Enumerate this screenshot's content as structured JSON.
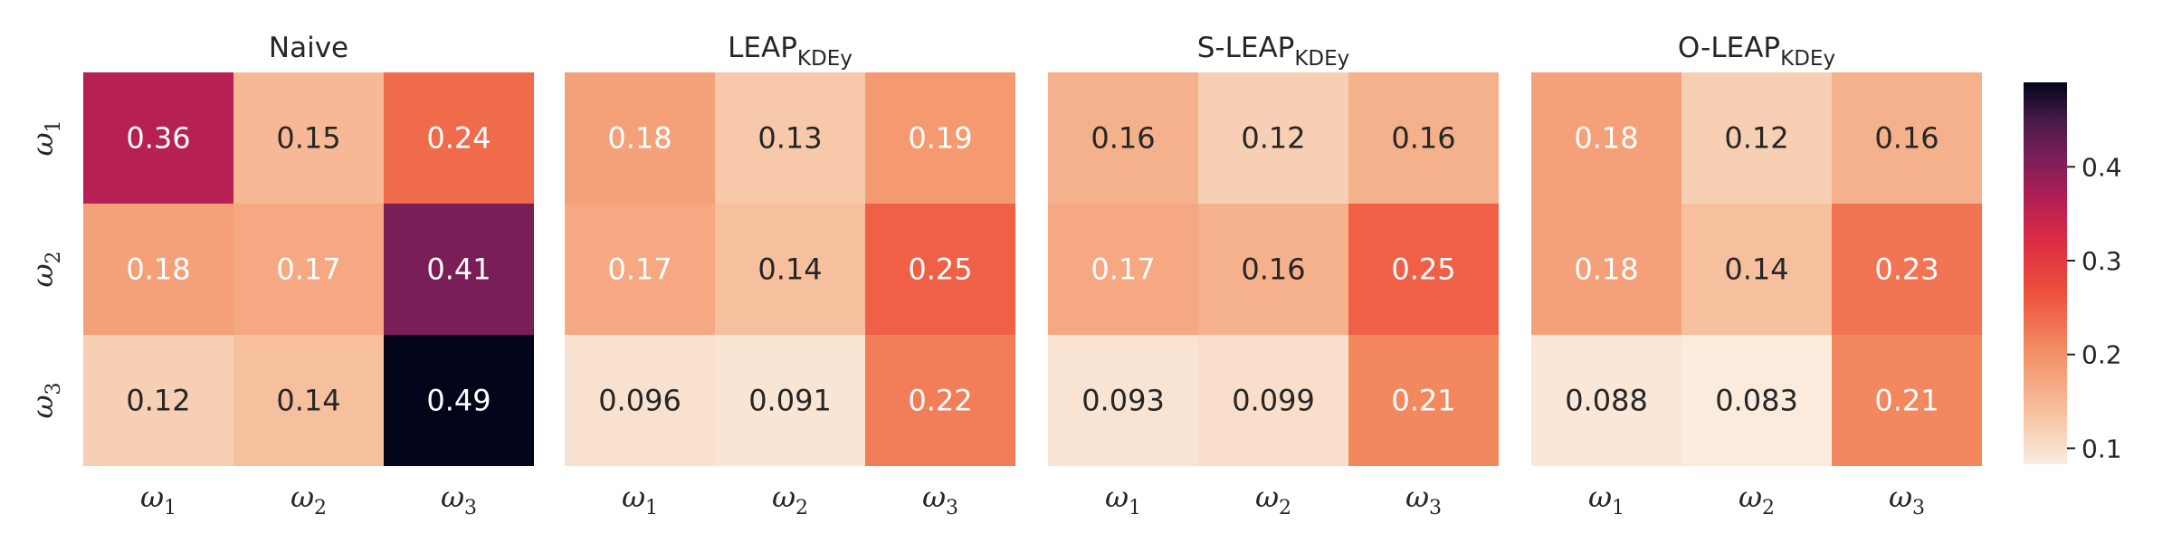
{
  "chart_data": {
    "type": "heatmap",
    "colormap": "rocket_r",
    "vmin": 0.083,
    "vmax": 0.49,
    "colorbar_ticks": [
      "0.1",
      "0.2",
      "0.3",
      "0.4"
    ],
    "colorbar_tick_values": [
      0.1,
      0.2,
      0.3,
      0.4
    ],
    "row_labels": [
      {
        "symbol": "ω",
        "sub": "1"
      },
      {
        "symbol": "ω",
        "sub": "2"
      },
      {
        "symbol": "ω",
        "sub": "3"
      }
    ],
    "col_labels": [
      {
        "symbol": "ω",
        "sub": "1"
      },
      {
        "symbol": "ω",
        "sub": "2"
      },
      {
        "symbol": "ω",
        "sub": "3"
      }
    ],
    "panels": [
      {
        "title": "Naive",
        "title_sub": "",
        "values": [
          [
            0.36,
            0.15,
            0.24
          ],
          [
            0.18,
            0.17,
            0.41
          ],
          [
            0.12,
            0.14,
            0.49
          ]
        ],
        "labels": [
          [
            "0.36",
            "0.15",
            "0.24"
          ],
          [
            "0.18",
            "0.17",
            "0.41"
          ],
          [
            "0.12",
            "0.14",
            "0.49"
          ]
        ]
      },
      {
        "title": "LEAP",
        "title_sub": "KDEy",
        "values": [
          [
            0.18,
            0.13,
            0.19
          ],
          [
            0.17,
            0.14,
            0.25
          ],
          [
            0.096,
            0.091,
            0.22
          ]
        ],
        "labels": [
          [
            "0.18",
            "0.13",
            "0.19"
          ],
          [
            "0.17",
            "0.14",
            "0.25"
          ],
          [
            "0.096",
            "0.091",
            "0.22"
          ]
        ]
      },
      {
        "title": "S-LEAP",
        "title_sub": "KDEy",
        "values": [
          [
            0.16,
            0.12,
            0.16
          ],
          [
            0.17,
            0.16,
            0.25
          ],
          [
            0.093,
            0.099,
            0.21
          ]
        ],
        "labels": [
          [
            "0.16",
            "0.12",
            "0.16"
          ],
          [
            "0.17",
            "0.16",
            "0.25"
          ],
          [
            "0.093",
            "0.099",
            "0.21"
          ]
        ]
      },
      {
        "title": "O-LEAP",
        "title_sub": "KDEy",
        "values": [
          [
            0.18,
            0.12,
            0.16
          ],
          [
            0.18,
            0.14,
            0.23
          ],
          [
            0.088,
            0.083,
            0.21
          ]
        ],
        "labels": [
          [
            "0.18",
            "0.12",
            "0.16"
          ],
          [
            "0.18",
            "0.14",
            "0.23"
          ],
          [
            "0.088",
            "0.083",
            "0.21"
          ]
        ]
      }
    ]
  }
}
